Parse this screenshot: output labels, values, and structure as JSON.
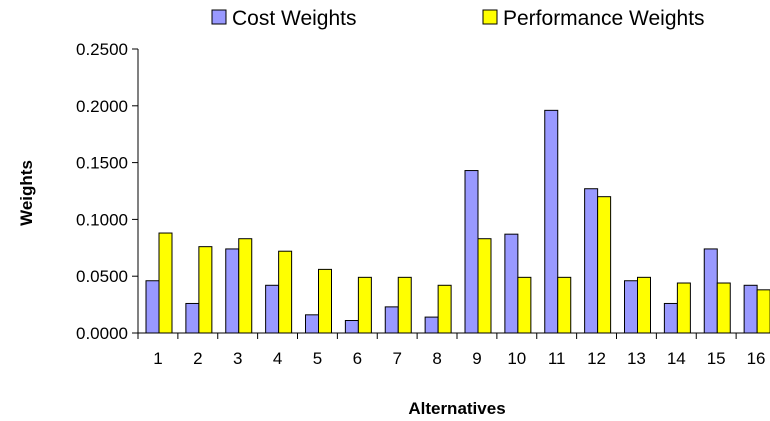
{
  "chart_data": {
    "type": "bar",
    "xlabel": "Alternatives",
    "ylabel": "Weights",
    "ylim": [
      0,
      0.25
    ],
    "yticks": [
      "0.0000",
      "0.0500",
      "0.1000",
      "0.1500",
      "0.2000",
      "0.2500"
    ],
    "grid": false,
    "legend_position": "top",
    "categories": [
      "1",
      "2",
      "3",
      "4",
      "5",
      "6",
      "7",
      "8",
      "9",
      "10",
      "11",
      "12",
      "13",
      "14",
      "15",
      "16"
    ],
    "series": [
      {
        "name": "Cost Weights",
        "color": "#9999ff",
        "values": [
          0.046,
          0.026,
          0.074,
          0.042,
          0.016,
          0.011,
          0.023,
          0.014,
          0.143,
          0.087,
          0.196,
          0.127,
          0.046,
          0.026,
          0.074,
          0.042
        ]
      },
      {
        "name": "Performance Weights",
        "color": "#ffff00",
        "values": [
          0.088,
          0.076,
          0.083,
          0.072,
          0.056,
          0.049,
          0.049,
          0.042,
          0.083,
          0.049,
          0.049,
          0.12,
          0.049,
          0.044,
          0.044,
          0.038
        ]
      }
    ]
  }
}
